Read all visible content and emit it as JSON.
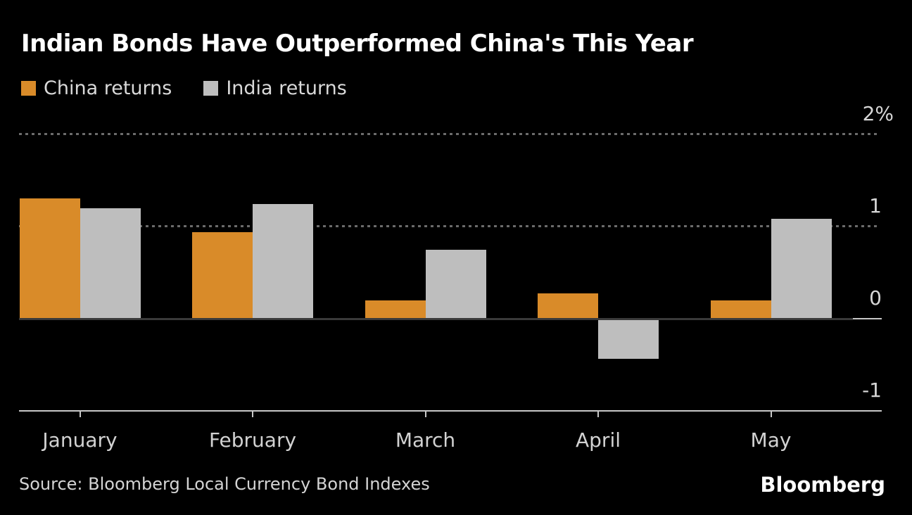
{
  "chart_data": {
    "type": "bar",
    "title": "Indian Bonds Have Outperformed China's This Year",
    "categories": [
      "January",
      "February",
      "March",
      "April",
      "May"
    ],
    "series": [
      {
        "name": "China returns",
        "color": "#D98B29",
        "values": [
          1.3,
          0.93,
          0.19,
          0.27,
          0.19
        ]
      },
      {
        "name": "India returns",
        "color": "#BEBEBE",
        "values": [
          1.19,
          1.24,
          0.74,
          -0.42,
          1.08
        ]
      }
    ],
    "unit": "%",
    "ylim": [
      -1,
      2.3
    ],
    "yticks": [
      {
        "value": 2,
        "label": "2%"
      },
      {
        "value": 1,
        "label": "1"
      },
      {
        "value": 0,
        "label": "0"
      },
      {
        "value": -1,
        "label": "-1"
      }
    ],
    "grid": "dotted-horizontal",
    "legend_position": "top-left",
    "source": "Source: Bloomberg Local Currency Bond Indexes",
    "brand": "Bloomberg"
  },
  "colors": {
    "background": "#000000",
    "title_text": "#FFFFFF",
    "legend_text": "#D9D9D9",
    "axis_text": "#D4D4D4",
    "gridline": "#6B6B6B",
    "zero_line": "#3A3A3A",
    "axis_line": "#C8C8C8"
  }
}
